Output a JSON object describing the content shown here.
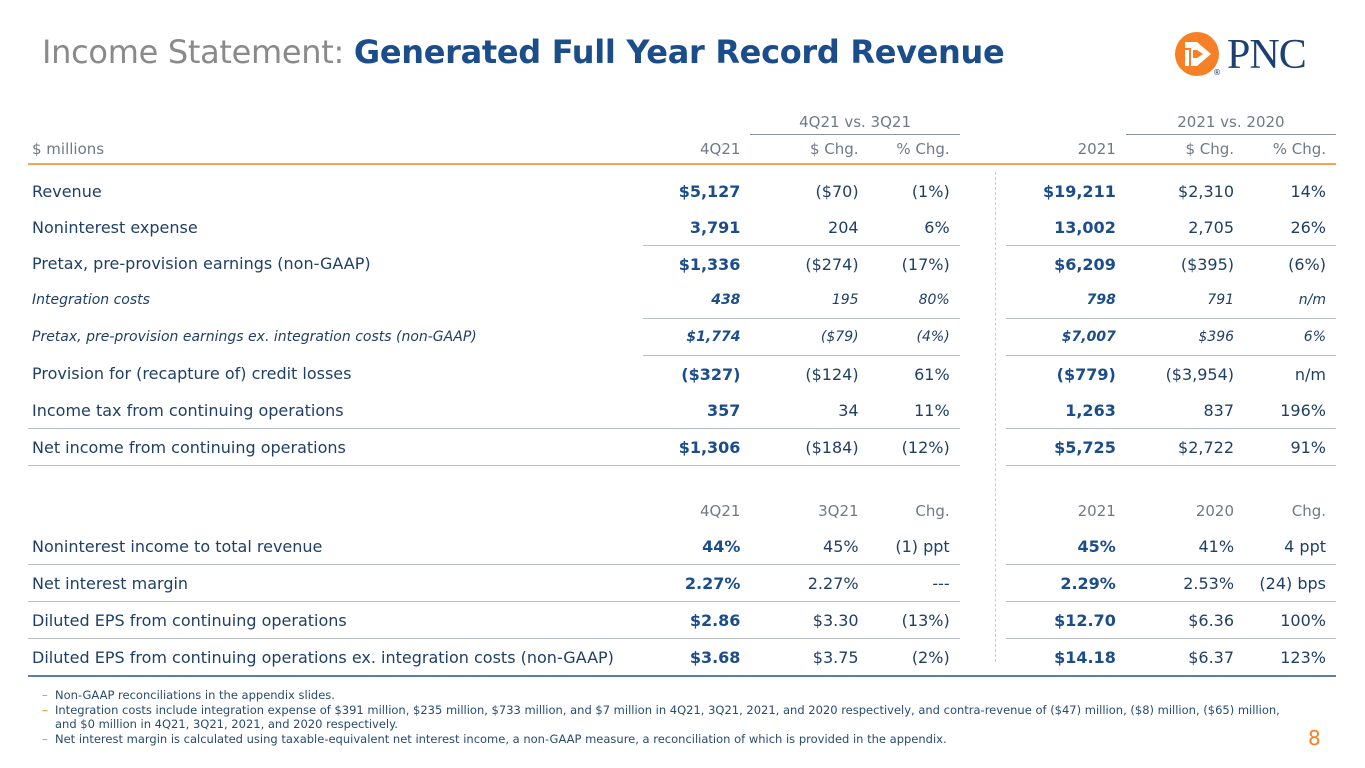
{
  "title": {
    "prefix": "Income Statement:",
    "highlight": "Generated Full Year Record Revenue"
  },
  "logo": {
    "text": "PNC",
    "registered": "®"
  },
  "colors": {
    "brand_blue": "#1b4d8a",
    "brand_orange": "#f58025",
    "gray_text": "#8a8a8a"
  },
  "table1": {
    "group_headers": {
      "q": "4Q21 vs. 3Q21",
      "y": "2021 vs. 2020"
    },
    "headers": [
      "$ millions",
      "4Q21",
      "$ Chg.",
      "% Chg.",
      "2021",
      "$ Chg.",
      "% Chg."
    ],
    "rows": [
      [
        "Revenue",
        "$5,127",
        "($70)",
        "(1%)",
        "$19,211",
        "$2,310",
        "14%"
      ],
      [
        "Noninterest expense",
        "3,791",
        "204",
        "6%",
        "13,002",
        "2,705",
        "26%"
      ],
      [
        "Pretax, pre-provision earnings (non-GAAP)",
        "$1,336",
        "($274)",
        "(17%)",
        "$6,209",
        "($395)",
        "(6%)"
      ],
      [
        "Integration costs",
        "438",
        "195",
        "80%",
        "798",
        "791",
        "n/m"
      ],
      [
        "Pretax, pre-provision earnings ex. integration costs (non-GAAP)",
        "$1,774",
        "($79)",
        "(4%)",
        "$7,007",
        "$396",
        "6%"
      ],
      [
        "Provision for (recapture of) credit losses",
        "($327)",
        "($124)",
        "61%",
        "($779)",
        "($3,954)",
        "n/m"
      ],
      [
        "Income tax from continuing operations",
        "357",
        "34",
        "11%",
        "1,263",
        "837",
        "196%"
      ],
      [
        "Net income from continuing operations",
        "$1,306",
        "($184)",
        "(12%)",
        "$5,725",
        "$2,722",
        "91%"
      ]
    ]
  },
  "table2": {
    "headers": [
      "4Q21",
      "3Q21",
      "Chg.",
      "2021",
      "2020",
      "Chg."
    ],
    "rows": [
      [
        "Noninterest income to total revenue",
        "44%",
        "45%",
        "(1) ppt",
        "45%",
        "41%",
        "4 ppt"
      ],
      [
        "Net interest margin",
        "2.27%",
        "2.27%",
        "---",
        "2.29%",
        "2.53%",
        "(24) bps"
      ],
      [
        "Diluted EPS from continuing operations",
        "$2.86",
        "$3.30",
        "(13%)",
        "$12.70",
        "$6.36",
        "100%"
      ],
      [
        "Diluted EPS from continuing operations ex. integration costs (non-GAAP)",
        "$3.68",
        "$3.75",
        "(2%)",
        "$14.18",
        "$6.37",
        "123%"
      ]
    ]
  },
  "notes": [
    "Non-GAAP reconciliations in the appendix slides.",
    "Integration costs include integration expense of $391 million, $235 million, $733 million, and $7 million in 4Q21, 3Q21, 2021, and 2020 respectively, and contra-revenue of ($47) million, ($8) million, ($65) million, and $0 million in 4Q21, 3Q21, 2021, and 2020 respectively.",
    "Net interest margin is calculated using taxable-equivalent net interest income, a non-GAAP measure, a reconciliation of which is provided in the appendix."
  ],
  "page_number": "8"
}
